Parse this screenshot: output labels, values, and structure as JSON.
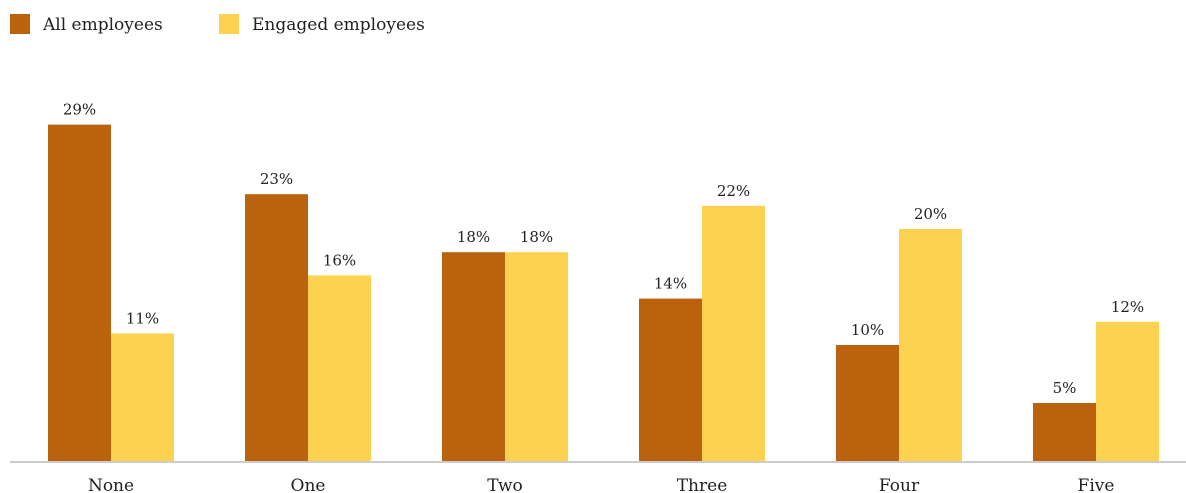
{
  "chart_data": {
    "type": "bar",
    "categories": [
      "None",
      "One",
      "Two",
      "Three",
      "Four",
      "Five"
    ],
    "series": [
      {
        "name": "All employees",
        "values": [
          29,
          23,
          18,
          14,
          10,
          5
        ],
        "labels": [
          "29%",
          "23%",
          "18%",
          "14%",
          "10%",
          "5%"
        ],
        "color": "#bb620f"
      },
      {
        "name": "Engaged employees",
        "values": [
          11,
          16,
          18,
          22,
          20,
          12
        ],
        "labels": [
          "11%",
          "16%",
          "18%",
          "22%",
          "20%",
          "12%"
        ],
        "color": "#fdd250"
      }
    ],
    "ylim": [
      0,
      30
    ],
    "grid": false,
    "legend": "top-left",
    "axis_color": "#cccccc"
  }
}
